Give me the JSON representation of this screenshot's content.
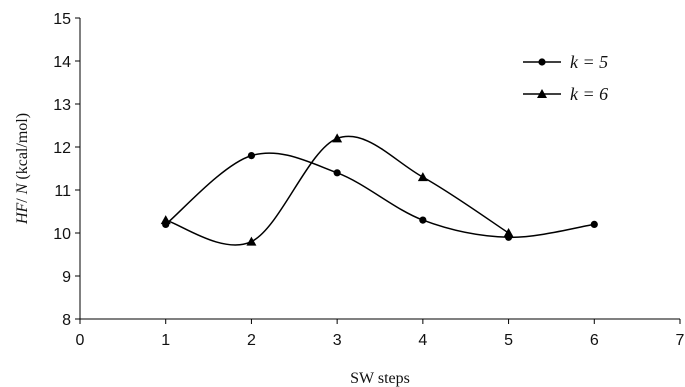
{
  "chart_data": {
    "type": "line",
    "title": "",
    "xlabel": "SW steps",
    "ylabel": "HF/ N (kcal/mol)",
    "xlim": [
      0,
      7
    ],
    "ylim": [
      8,
      15
    ],
    "x_ticks": [
      "0",
      "1",
      "2",
      "3",
      "4",
      "5",
      "6",
      "7"
    ],
    "y_ticks": [
      "8",
      "9",
      "10",
      "11",
      "12",
      "13",
      "14",
      "15"
    ],
    "grid": false,
    "legend_position": "top-right",
    "series": [
      {
        "name": "k = 5",
        "marker": "circle",
        "x": [
          1,
          2,
          3,
          4,
          5,
          6
        ],
        "values": [
          10.2,
          11.8,
          11.4,
          10.3,
          9.9,
          10.2
        ]
      },
      {
        "name": "k = 6",
        "marker": "triangle",
        "x": [
          1,
          2,
          3,
          4,
          5
        ],
        "values": [
          10.3,
          9.8,
          12.2,
          11.3,
          10.0
        ]
      }
    ],
    "colors": {
      "line": "#000000",
      "axis": "#000000"
    }
  }
}
